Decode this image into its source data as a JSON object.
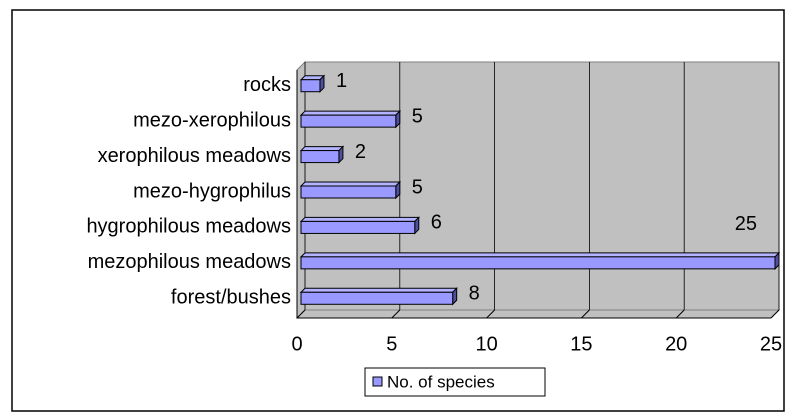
{
  "chart_data": {
    "type": "bar3d_horizontal",
    "categories": [
      "forest/bushes",
      "mezophilous meadows",
      "hygrophilous meadows",
      "mezo-hygrophilus",
      "xerophilous meadows",
      "mezo-xerophilous",
      "rocks"
    ],
    "series": [
      {
        "name": "No. of species",
        "color": "#9999ff",
        "values": [
          8,
          25,
          6,
          5,
          2,
          5,
          1
        ]
      }
    ],
    "xlim": [
      0,
      25
    ],
    "xticks": [
      0,
      5,
      10,
      15,
      20,
      25
    ],
    "grid": true,
    "legend": "bottom"
  }
}
